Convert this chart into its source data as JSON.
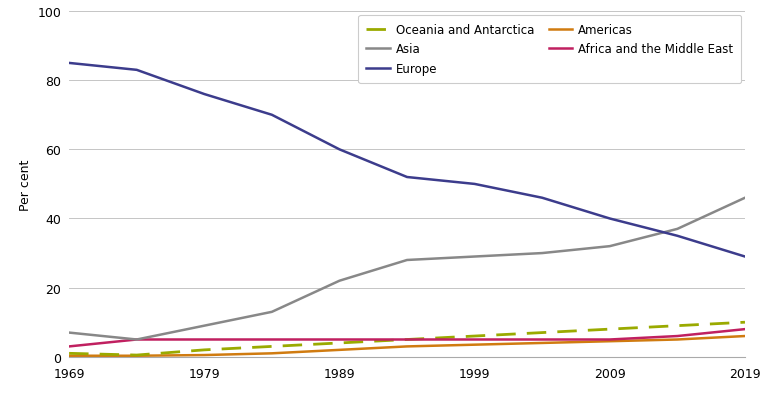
{
  "years": [
    1969,
    1974,
    1979,
    1984,
    1989,
    1994,
    1999,
    2004,
    2009,
    2014,
    2019
  ],
  "europe": [
    85,
    83,
    76,
    70,
    60,
    52,
    50,
    46,
    40,
    35,
    29
  ],
  "asia": [
    7,
    5,
    9,
    13,
    22,
    28,
    29,
    30,
    32,
    37,
    46
  ],
  "oceania": [
    1,
    0.5,
    2,
    3,
    4,
    5,
    6,
    7,
    8,
    9,
    10
  ],
  "americas": [
    0.3,
    0.3,
    0.5,
    1,
    2,
    3,
    3.5,
    4,
    4.5,
    5,
    6
  ],
  "africa_middle_east": [
    3,
    5,
    5,
    5,
    5,
    5,
    5,
    5,
    5,
    6,
    8
  ],
  "europe_color": "#3c3c8c",
  "asia_color": "#888888",
  "oceania_color": "#9aaa00",
  "americas_color": "#d07b10",
  "africa_middle_east_color": "#c02060",
  "ylabel": "Per cent",
  "ylim": [
    0,
    100
  ],
  "yticks": [
    0,
    20,
    40,
    60,
    80,
    100
  ],
  "xticks": [
    1969,
    1979,
    1989,
    1999,
    2009,
    2019
  ],
  "background_color": "#ffffff",
  "grid_color": "#bbbbbb"
}
